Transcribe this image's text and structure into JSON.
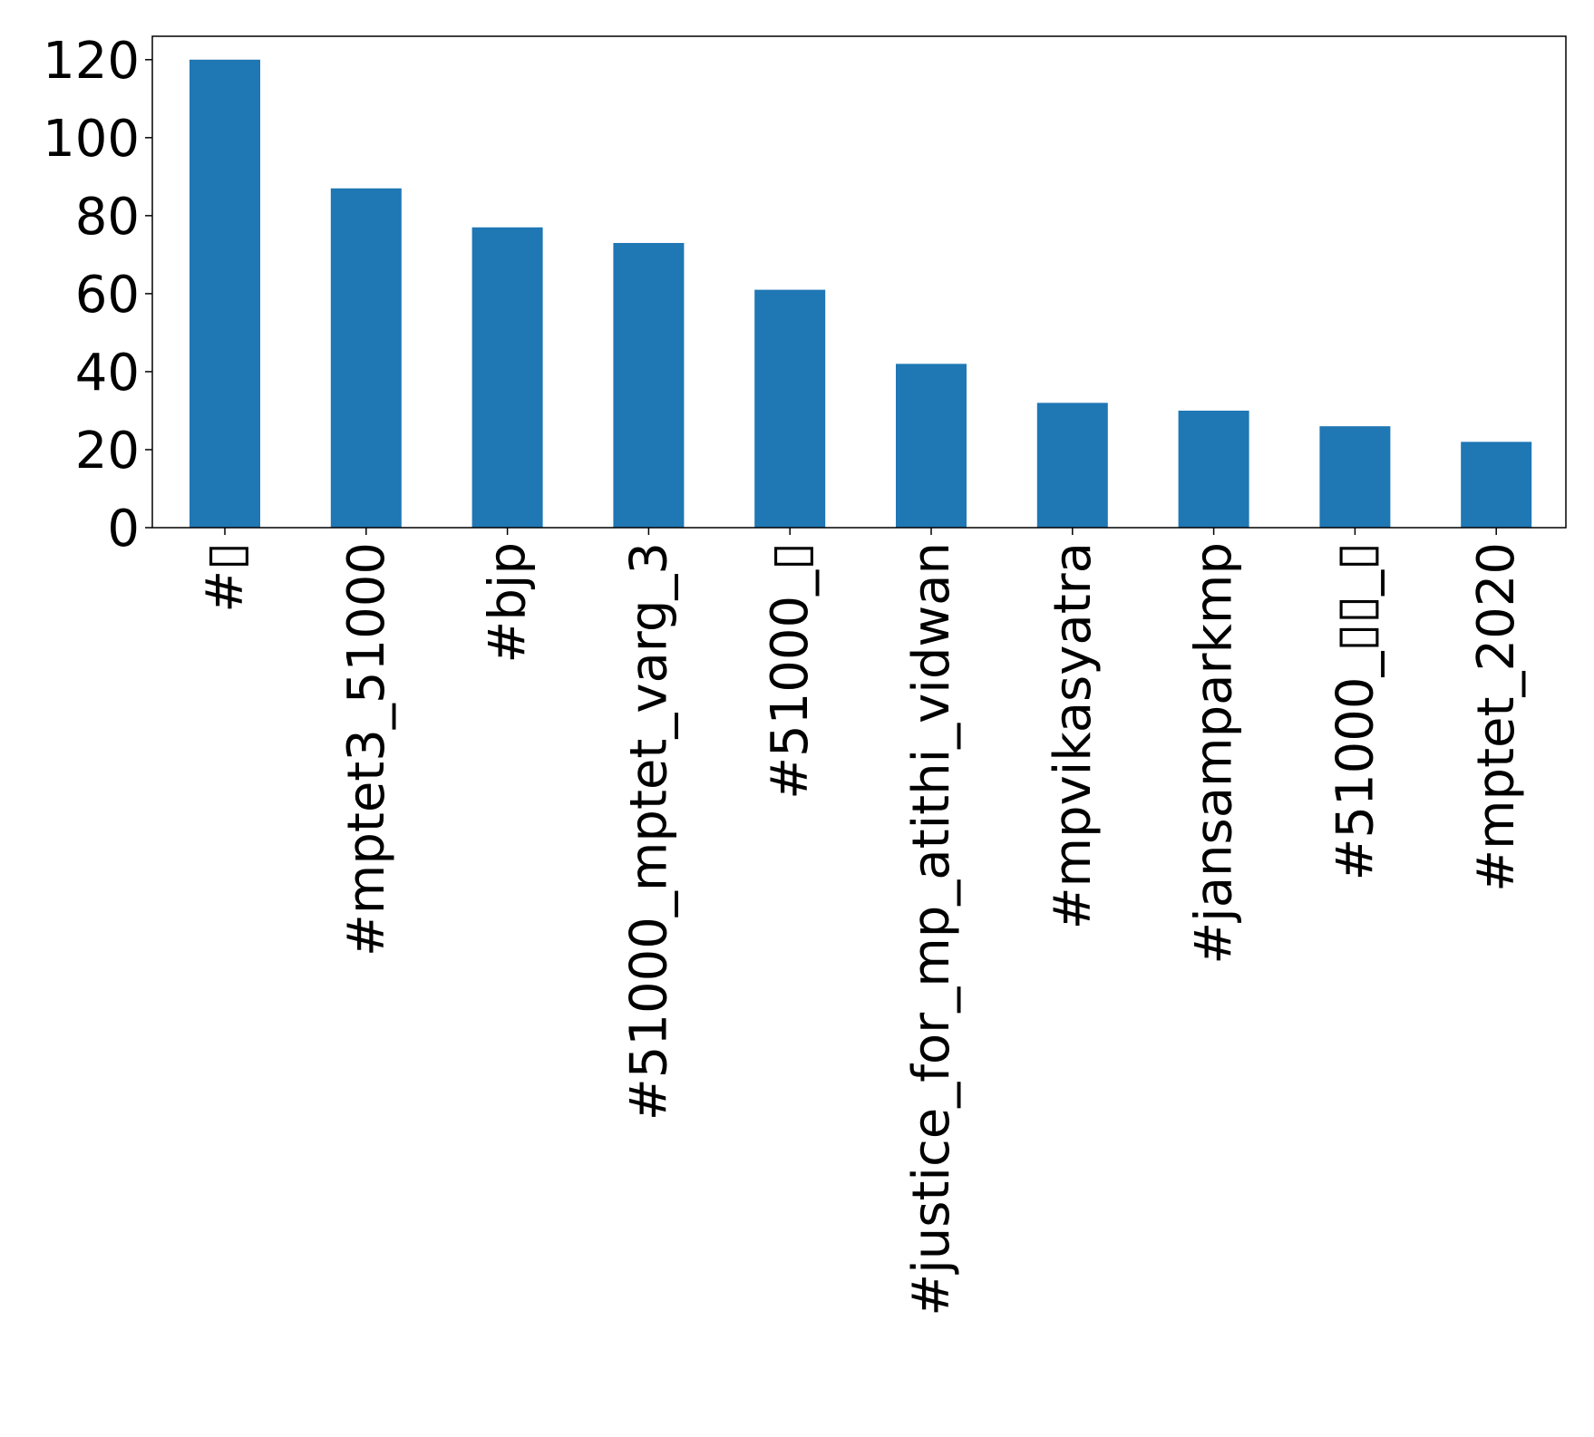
{
  "chart_data": {
    "type": "bar",
    "title": "",
    "xlabel": "",
    "ylabel": "",
    "categories": [
      "#▯",
      "#mptet3_51000",
      "#bjp",
      "#51000_mptet_varg_3",
      "#51000_▯",
      "#justice_for_mp_atithi_vidwan",
      "#mpvikasyatra",
      "#jansamparkmp",
      "#51000_▯▯_▯",
      "#mptet_2020"
    ],
    "values": [
      120,
      87,
      77,
      73,
      61,
      42,
      32,
      30,
      26,
      22
    ],
    "ylim": [
      0,
      126
    ],
    "yticks": [
      0,
      20,
      40,
      60,
      80,
      100,
      120
    ],
    "colors": {
      "bar": "#1f77b4",
      "axis": "#000000",
      "text": "#000000"
    },
    "grid": false,
    "legend": "none",
    "x_tick_rotation": "vertical"
  }
}
